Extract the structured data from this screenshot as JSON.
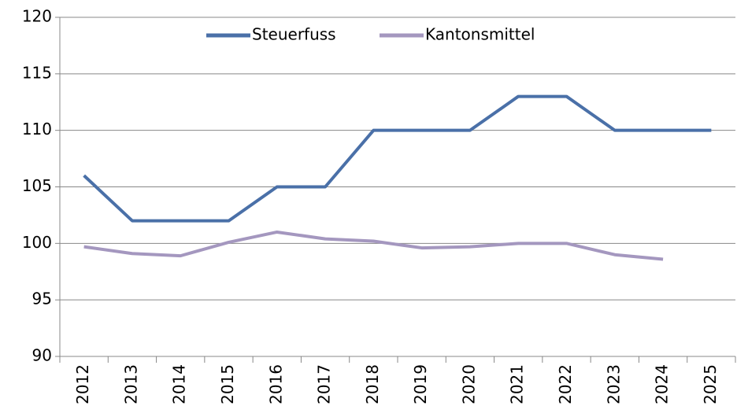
{
  "chart_data": {
    "type": "line",
    "categories": [
      "2012",
      "2013",
      "2014",
      "2015",
      "2016",
      "2017",
      "2018",
      "2019",
      "2020",
      "2021",
      "2022",
      "2023",
      "2024",
      "2025"
    ],
    "series": [
      {
        "name": "Steuerfuss",
        "color": "#4a70a8",
        "values": [
          106,
          102,
          102,
          102,
          105,
          105,
          110,
          110,
          110,
          113,
          113,
          110,
          110,
          110
        ]
      },
      {
        "name": "Kantonsmittel",
        "color": "#a497bf",
        "values": [
          99.7,
          99.1,
          98.9,
          100.1,
          101.0,
          100.4,
          100.2,
          99.6,
          99.7,
          100.0,
          100.0,
          99.0,
          98.6,
          null
        ]
      }
    ],
    "ylim": [
      90,
      120
    ],
    "yticks": [
      90,
      95,
      100,
      105,
      110,
      115,
      120
    ],
    "grid": true,
    "legend": "top"
  }
}
